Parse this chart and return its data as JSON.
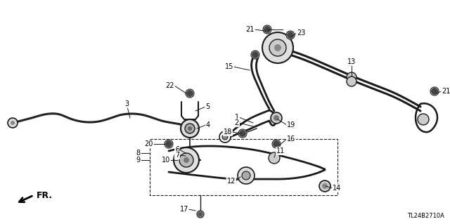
{
  "bg_color": "#ffffff",
  "line_color": "#1a1a1a",
  "fig_width": 6.4,
  "fig_height": 3.19,
  "dpi": 100,
  "diagram_code": "TL24B2710A",
  "fr_label": "FR.",
  "label_fontsize": 7.0,
  "lw_main": 1.8,
  "lw_thin": 1.0,
  "lw_bolt": 0.9
}
